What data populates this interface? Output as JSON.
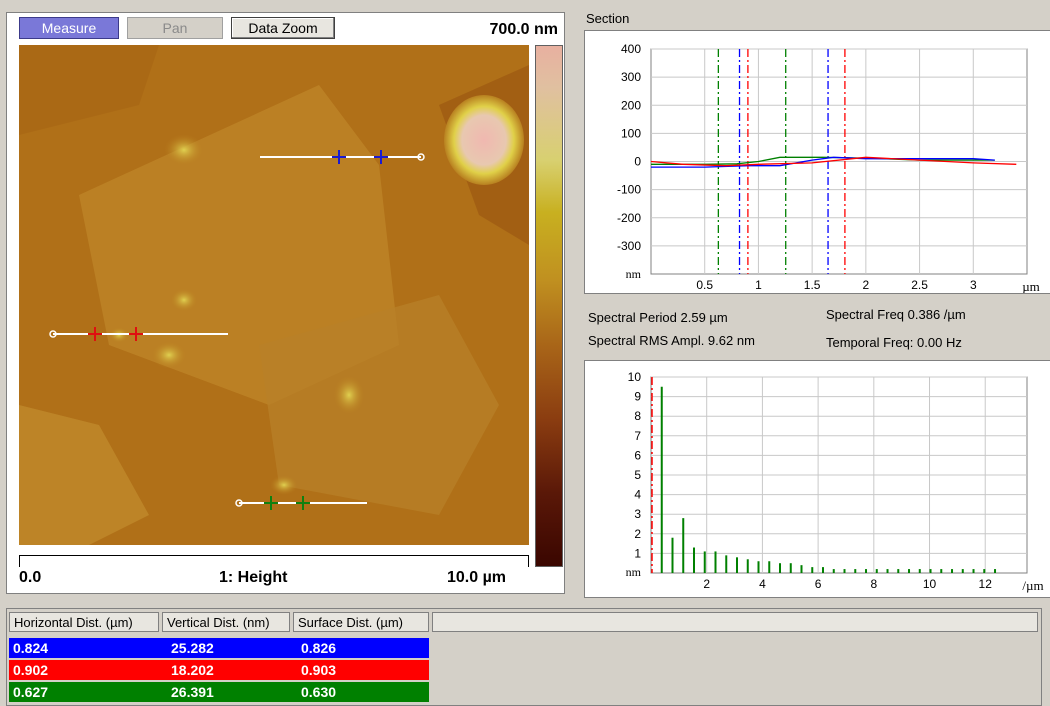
{
  "toolbar": {
    "measure": "Measure",
    "pan": "Pan",
    "data_zoom": "Data Zoom"
  },
  "image": {
    "z_range": "700.0 nm",
    "scale_start": "0.0",
    "scale_channel": "1: Height",
    "scale_end": "10.0 µm"
  },
  "section": {
    "title": "Section",
    "y_ticks": [
      "400",
      "300",
      "200",
      "100",
      "0",
      "-100",
      "-200",
      "-300"
    ],
    "y_unit": "nm",
    "x_ticks": [
      "0.5",
      "1",
      "1.5",
      "2",
      "2.5",
      "3"
    ],
    "x_unit": "µm"
  },
  "spectral": {
    "period": "Spectral Period 2.59 µm",
    "freq": "Spectral Freq 0.386 /µm",
    "rms": "Spectral RMS Ampl. 9.62 nm",
    "temporal": "Temporal Freq: 0.00 Hz"
  },
  "spectrum": {
    "y_ticks": [
      "10",
      "9",
      "8",
      "7",
      "6",
      "5",
      "4",
      "3",
      "2",
      "1"
    ],
    "y_unit": "nm",
    "x_ticks": [
      "2",
      "4",
      "6",
      "8",
      "10",
      "12"
    ],
    "x_unit": "/µm"
  },
  "table": {
    "headers": [
      "Horizontal Dist. (µm)",
      "Vertical Dist. (nm)",
      "Surface Dist. (µm)"
    ],
    "rows": [
      {
        "color": "#0000ff",
        "values": [
          "0.824",
          "25.282",
          "0.826"
        ]
      },
      {
        "color": "#ff0000",
        "values": [
          "0.902",
          "18.202",
          "0.903"
        ]
      },
      {
        "color": "#008000",
        "values": [
          "0.627",
          "26.391",
          "0.630"
        ]
      }
    ]
  },
  "chart_data": [
    {
      "type": "line",
      "ylim": [
        -400,
        400
      ],
      "xlim": [
        0,
        3.5
      ],
      "grid": true,
      "series": [
        {
          "color": "#008000",
          "x": [
            0,
            0.5,
            0.8,
            1.0,
            1.2,
            1.6,
            2.0,
            2.5,
            3.0,
            3.2
          ],
          "y": [
            -10,
            -10,
            -8,
            0,
            15,
            15,
            12,
            5,
            5,
            5
          ]
        },
        {
          "color": "#0000ff",
          "x": [
            0,
            0.5,
            0.9,
            1.2,
            1.5,
            1.7,
            2.0,
            2.5,
            3.0,
            3.2
          ],
          "y": [
            -20,
            -20,
            -15,
            -15,
            5,
            15,
            10,
            10,
            10,
            5
          ]
        },
        {
          "color": "#ff0000",
          "x": [
            0,
            0.3,
            0.7,
            1.0,
            1.5,
            2.0,
            2.5,
            3.0,
            3.4
          ],
          "y": [
            0,
            -10,
            -15,
            -10,
            -5,
            15,
            5,
            -5,
            -10
          ]
        }
      ],
      "cursors": [
        {
          "color": "#008000",
          "x": 0.627
        },
        {
          "color": "#008000",
          "x": 1.254
        },
        {
          "color": "#0000ff",
          "x": 0.824
        },
        {
          "color": "#0000ff",
          "x": 1.648
        },
        {
          "color": "#ff0000",
          "x": 0.902
        },
        {
          "color": "#ff0000",
          "x": 1.805
        }
      ]
    },
    {
      "type": "bar",
      "xlim": [
        0,
        13.5
      ],
      "ylim": [
        0,
        10
      ],
      "grid": true,
      "x": [
        0.386,
        0.772,
        1.158,
        1.544,
        1.93,
        2.316,
        2.702,
        3.088,
        3.474,
        3.86,
        4.246,
        4.632,
        5.018,
        5.404,
        5.79,
        6.176,
        6.562,
        6.948,
        7.334,
        7.72,
        8.106,
        8.492,
        8.878,
        9.264,
        9.65,
        10.036,
        10.422,
        10.808,
        11.194,
        11.58,
        11.966,
        12.352
      ],
      "values": [
        9.5,
        1.8,
        2.8,
        1.3,
        1.1,
        1.1,
        0.9,
        0.8,
        0.7,
        0.6,
        0.6,
        0.5,
        0.5,
        0.4,
        0.3,
        0.3,
        0.2,
        0.2,
        0.2,
        0.2,
        0.2,
        0.2,
        0.2,
        0.2,
        0.2,
        0.2,
        0.2,
        0.2,
        0.2,
        0.2,
        0.2,
        0.2
      ],
      "bar_color": "#008000",
      "cursor": {
        "color": "#ff0000",
        "x": 0
      }
    }
  ]
}
